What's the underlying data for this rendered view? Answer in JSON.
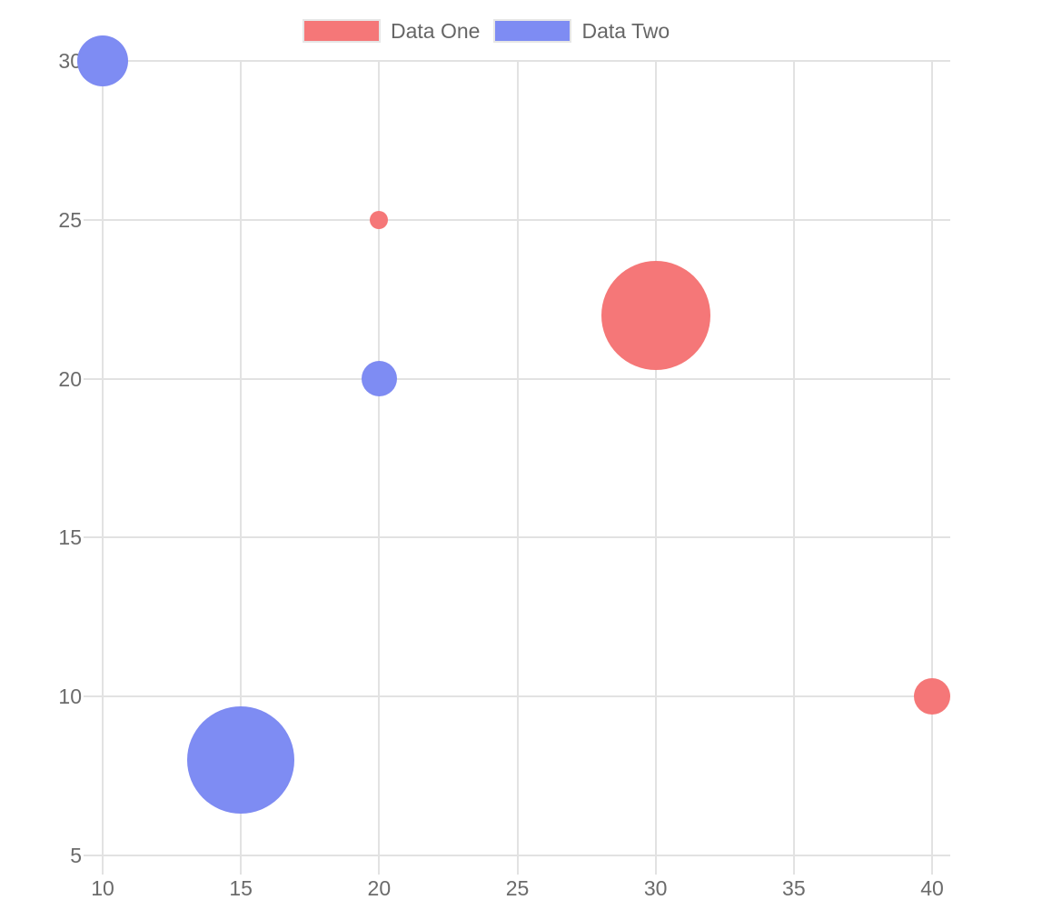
{
  "chart_data": {
    "type": "bubble",
    "title": "",
    "xlabel": "",
    "ylabel": "",
    "legend_position": "top",
    "grid": true,
    "x_ticks": [
      10,
      15,
      20,
      25,
      30,
      35,
      40
    ],
    "y_ticks": [
      5,
      10,
      15,
      20,
      25,
      30
    ],
    "x_range": [
      10,
      40
    ],
    "y_range": [
      5,
      30
    ],
    "series": [
      {
        "name": "Data One",
        "color": "#f57778",
        "border_color": "rgba(245,119,120,0.3)",
        "points": [
          {
            "x": 20,
            "y": 25,
            "r": 10
          },
          {
            "x": 30,
            "y": 22,
            "r": 60
          },
          {
            "x": 40,
            "y": 10,
            "r": 20
          }
        ]
      },
      {
        "name": "Data Two",
        "color": "#7e8cf3",
        "border_color": "rgba(126,140,243,0.3)",
        "points": [
          {
            "x": 10,
            "y": 30,
            "r": 28
          },
          {
            "x": 20,
            "y": 20,
            "r": 19.5
          },
          {
            "x": 15,
            "y": 8,
            "r": 59
          }
        ]
      }
    ],
    "colors": {
      "background": "#ffffff",
      "grid": "#e2e2e2",
      "tick_text": "#6b6b6b",
      "legend_text": "#666666",
      "legend_swatch_border": "#e6e6e6"
    }
  }
}
